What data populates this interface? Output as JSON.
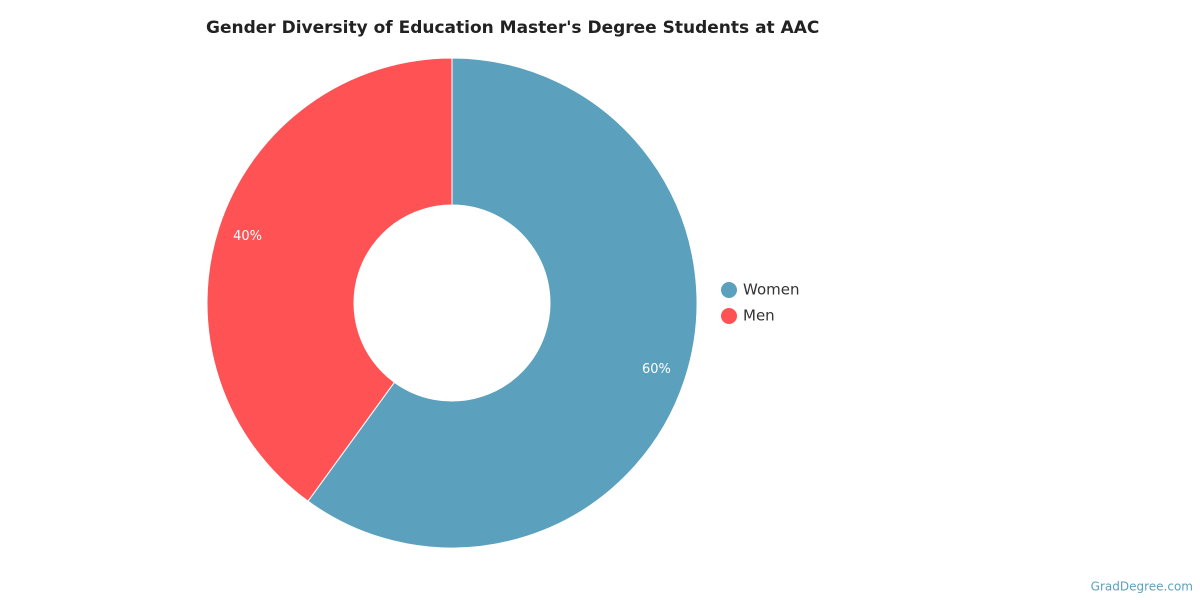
{
  "chart_data": {
    "type": "donut",
    "title": "Gender Diversity of Education Master's Degree Students at AAC",
    "categories": [
      "Women",
      "Men"
    ],
    "values": [
      60,
      40
    ],
    "value_labels": [
      "60%",
      "40%"
    ],
    "colors": [
      "#5ba1bd",
      "#fe5254"
    ],
    "legend": "right",
    "source": "GradDegree.com"
  }
}
